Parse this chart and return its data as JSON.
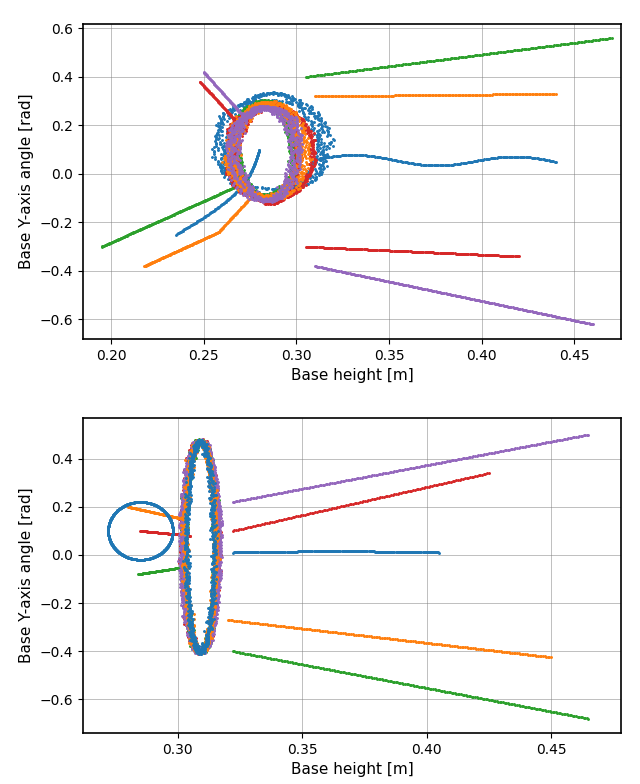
{
  "top_plot": {
    "xlim": [
      0.185,
      0.475
    ],
    "ylim": [
      -0.68,
      0.62
    ],
    "xticks": [
      0.2,
      0.25,
      0.3,
      0.35,
      0.4,
      0.45
    ],
    "yticks": [
      -0.6,
      -0.4,
      -0.2,
      0.0,
      0.2,
      0.4,
      0.6
    ],
    "xlabel": "Base height [m]",
    "ylabel": "Base Y-axis angle [rad]"
  },
  "bottom_plot": {
    "xlim": [
      0.262,
      0.478
    ],
    "ylim": [
      -0.74,
      0.57
    ],
    "xticks": [
      0.3,
      0.35,
      0.4,
      0.45
    ],
    "yticks": [
      -0.6,
      -0.4,
      -0.2,
      0.0,
      0.2,
      0.4
    ],
    "xlabel": "Base height [m]",
    "ylabel": "Base Y-axis angle [rad]"
  },
  "colors": {
    "blue": "#1f77b4",
    "green": "#2ca02c",
    "red": "#d62728",
    "orange": "#ff7f0e",
    "purple": "#9467bd"
  }
}
